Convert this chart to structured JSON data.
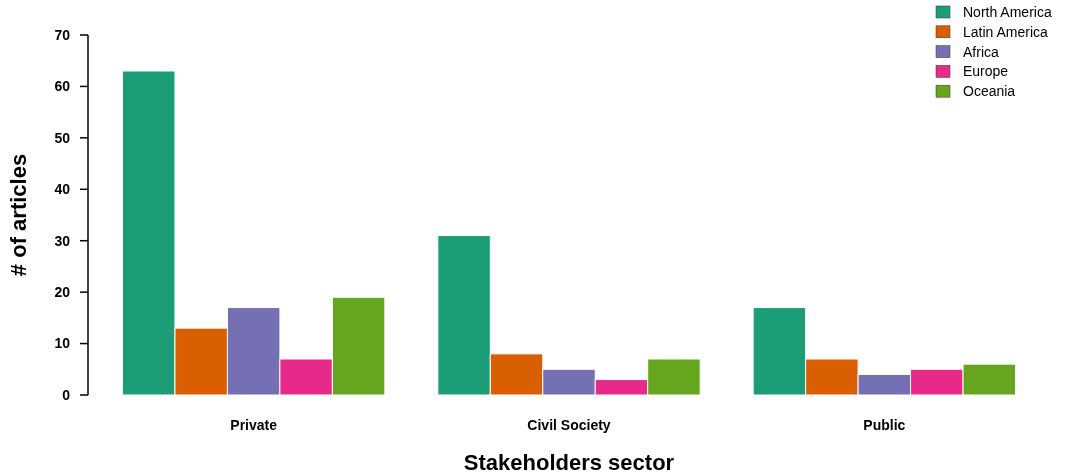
{
  "chart_data": {
    "type": "bar",
    "xlabel": "Stakeholders sector",
    "ylabel": "# of articles",
    "categories": [
      "Private",
      "Civil Society",
      "Public"
    ],
    "series": [
      {
        "name": "North America",
        "color": "#1b9e77",
        "values": [
          63,
          31,
          17
        ]
      },
      {
        "name": "Latin America",
        "color": "#d95f02",
        "values": [
          13,
          8,
          7
        ]
      },
      {
        "name": "Africa",
        "color": "#7570b3",
        "values": [
          17,
          5,
          4
        ]
      },
      {
        "name": "Europe",
        "color": "#e7298a",
        "values": [
          7,
          3,
          5
        ]
      },
      {
        "name": "Oceania",
        "color": "#66a61e",
        "values": [
          19,
          7,
          6
        ]
      }
    ],
    "ylim": [
      0,
      70
    ],
    "yticks": [
      0,
      10,
      20,
      30,
      40,
      50,
      60,
      70
    ],
    "grid": false,
    "legend": "top right"
  }
}
